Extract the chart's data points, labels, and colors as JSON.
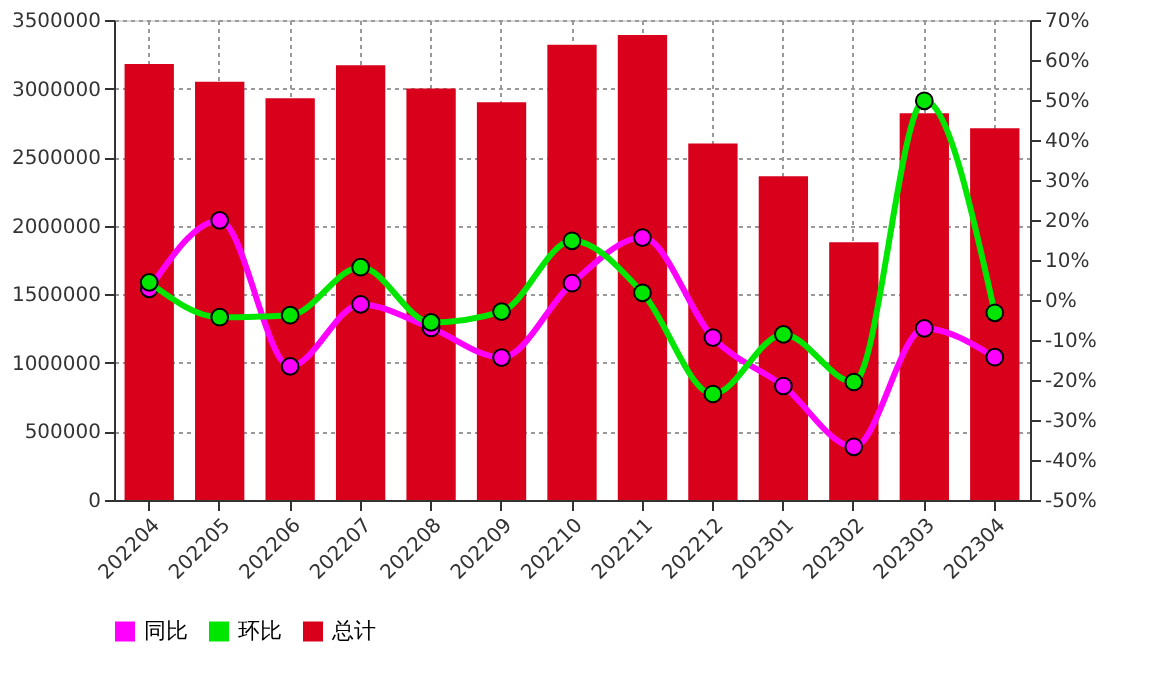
{
  "chart_data": {
    "type": "bar",
    "categories": [
      "202204",
      "202205",
      "202206",
      "202207",
      "202208",
      "202209",
      "202210",
      "202211",
      "202212",
      "202301",
      "202302",
      "202303",
      "202304"
    ],
    "series": [
      {
        "name": "同比",
        "type": "line",
        "axis": "y2",
        "color": "#ff00ff",
        "values": [
          2.8,
          19.9,
          -16.6,
          -1.1,
          -7.0,
          -14.4,
          4.2,
          15.6,
          -9.4,
          -21.5,
          -36.7,
          -7.1,
          -14.3
        ]
      },
      {
        "name": "环比",
        "type": "line",
        "axis": "y2",
        "color": "#00e600",
        "values": [
          4.4,
          -4.3,
          -3.8,
          8.2,
          -5.6,
          -2.9,
          14.8,
          1.8,
          -23.5,
          -8.6,
          -20.5,
          49.8,
          -3.2
        ]
      },
      {
        "name": "总计",
        "color": "#d9001b",
        "values": [
          3180000,
          3050000,
          2930000,
          3170000,
          3000000,
          2900000,
          3320000,
          3390000,
          2600000,
          2360000,
          1880000,
          2820000,
          2710000
        ]
      }
    ],
    "ylim": [
      0,
      3500000
    ],
    "yticks": [
      0,
      500000,
      1000000,
      1500000,
      2000000,
      2500000,
      3000000,
      3500000
    ],
    "y2lim": [
      -50,
      70
    ],
    "y2ticks": [
      {
        "value": -50,
        "label": "-50%"
      },
      {
        "value": -40,
        "label": "-40%"
      },
      {
        "value": -30,
        "label": "-30%"
      },
      {
        "value": -20,
        "label": "-20%"
      },
      {
        "value": -10,
        "label": "-10%"
      },
      {
        "value": 0,
        "label": "0%"
      },
      {
        "value": 10,
        "label": "10%"
      },
      {
        "value": 20,
        "label": "20%"
      },
      {
        "value": 30,
        "label": "30%"
      },
      {
        "value": 40,
        "label": "40%"
      },
      {
        "value": 50,
        "label": "50%"
      },
      {
        "value": 60,
        "label": "60%"
      },
      {
        "value": 70,
        "label": "70%"
      }
    ],
    "grid": true,
    "legend": "bottom",
    "marker": "circle",
    "line_style": "solid"
  }
}
